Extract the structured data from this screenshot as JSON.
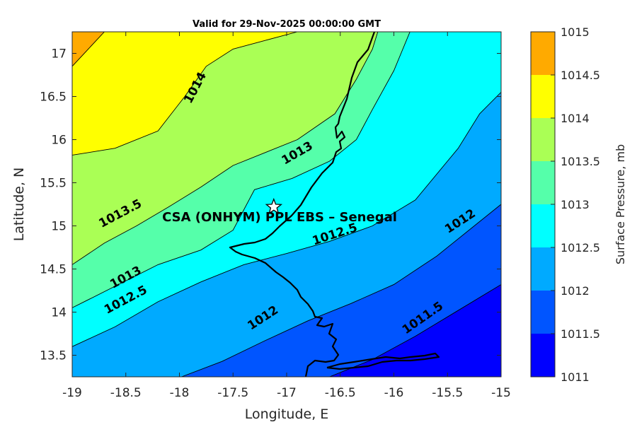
{
  "title": "Valid for 29-Nov-2025 00:00:00 GMT",
  "xlabel": "Longitude, E",
  "ylabel": "Latitude, N",
  "colorbar_label": "Surface Pressure, mb",
  "site_label": "CSA (ONHYM) PPL EBS  – Senegal",
  "site": {
    "lon": -17.12,
    "lat": 15.22,
    "marker": "star-icon"
  },
  "chart_data": {
    "type": "heatmap",
    "xlim": [
      -19,
      -15
    ],
    "ylim": [
      13.25,
      17.25
    ],
    "xticks": [
      -19,
      -18.5,
      -18,
      -17.5,
      -17,
      -16.5,
      -16,
      -15.5,
      -15
    ],
    "xtick_labels": [
      "-19",
      "-18.5",
      "-18",
      "-17.5",
      "-17",
      "-16.5",
      "-16",
      "-15.5",
      "-15"
    ],
    "yticks": [
      13.5,
      14,
      14.5,
      15,
      15.5,
      16,
      16.5,
      17
    ],
    "ytick_labels": [
      "13.5",
      "14",
      "14.5",
      "15",
      "15.5",
      "16",
      "16.5",
      "17"
    ],
    "levels": [
      1011,
      1011.5,
      1012,
      1012.5,
      1013,
      1013.5,
      1014,
      1014.5,
      1015
    ],
    "level_labels": [
      "1011",
      "1011.5",
      "1012",
      "1012.5",
      "1013",
      "1013.5",
      "1014",
      "1014.5",
      "1015"
    ],
    "level_colors": [
      "#0000ff",
      "#0055ff",
      "#00aaff",
      "#00ffff",
      "#55ffaa",
      "#aaff55",
      "#ffff00",
      "#ffaa00",
      "#ff5500"
    ],
    "contours": [
      {
        "level": 1011.5,
        "label": "1011.5",
        "points": [
          [
            -16.6,
            13.25
          ],
          [
            -16.2,
            13.45
          ],
          [
            -15.8,
            13.72
          ],
          [
            -15.4,
            14.02
          ],
          [
            -15.0,
            14.32
          ]
        ],
        "label_at": [
          -15.73,
          13.93
        ],
        "label_angle": -35
      },
      {
        "level": 1012,
        "label": "1012",
        "points": [
          [
            -17.98,
            13.25
          ],
          [
            -17.6,
            13.43
          ],
          [
            -17.2,
            13.67
          ],
          [
            -16.8,
            13.9
          ],
          [
            -16.4,
            14.1
          ],
          [
            -16.0,
            14.32
          ],
          [
            -15.6,
            14.65
          ],
          [
            -15.25,
            15.0
          ],
          [
            -15.0,
            15.25
          ]
        ],
        "label_at": [
          -17.22,
          13.93
        ],
        "label_angle": -33,
        "label2": "1012",
        "label2_at": [
          -15.38,
          15.05
        ],
        "label2_angle": -33
      },
      {
        "level": 1012.5,
        "label": "1012.5",
        "points": [
          [
            -19.0,
            13.6
          ],
          [
            -18.6,
            13.83
          ],
          [
            -18.2,
            14.12
          ],
          [
            -17.8,
            14.35
          ],
          [
            -17.4,
            14.55
          ],
          [
            -17.0,
            14.68
          ],
          [
            -16.6,
            14.82
          ],
          [
            -16.2,
            15.0
          ],
          [
            -15.8,
            15.3
          ],
          [
            -15.4,
            15.9
          ],
          [
            -15.2,
            16.3
          ],
          [
            -15.0,
            16.55
          ]
        ],
        "label_at": [
          -18.5,
          14.14
        ],
        "label_angle": -28,
        "label2": "1012.5",
        "label2_at": [
          -16.55,
          14.9
        ],
        "label2_angle": -18
      },
      {
        "level": 1013,
        "label": "1013",
        "points": [
          [
            -19.0,
            14.05
          ],
          [
            -18.6,
            14.3
          ],
          [
            -18.2,
            14.55
          ],
          [
            -17.8,
            14.72
          ],
          [
            -17.5,
            14.95
          ],
          [
            -17.3,
            15.42
          ],
          [
            -16.95,
            15.55
          ],
          [
            -16.6,
            15.75
          ],
          [
            -16.35,
            16.0
          ],
          [
            -16.2,
            16.35
          ],
          [
            -16.0,
            16.8
          ],
          [
            -15.85,
            17.25
          ]
        ],
        "label_at": [
          -18.5,
          14.4
        ],
        "label_angle": -28,
        "label2": "1013",
        "label2_at": [
          -16.9,
          15.84
        ],
        "label2_angle": -30
      },
      {
        "level": 1013.5,
        "label": "1013.5",
        "points": [
          [
            -19.0,
            14.55
          ],
          [
            -18.7,
            14.8
          ],
          [
            -18.4,
            15.0
          ],
          [
            -18.1,
            15.22
          ],
          [
            -17.8,
            15.45
          ],
          [
            -17.5,
            15.7
          ],
          [
            -17.2,
            15.85
          ],
          [
            -16.9,
            16.0
          ],
          [
            -16.55,
            16.3
          ],
          [
            -16.35,
            16.7
          ],
          [
            -16.2,
            17.05
          ],
          [
            -16.15,
            17.25
          ]
        ],
        "label_at": [
          -18.55,
          15.14
        ],
        "label_angle": -28
      },
      {
        "level": 1014,
        "label": "1014",
        "points": [
          [
            -19.0,
            15.82
          ],
          [
            -18.6,
            15.9
          ],
          [
            -18.2,
            16.1
          ],
          [
            -17.95,
            16.5
          ],
          [
            -17.75,
            16.85
          ],
          [
            -17.5,
            17.05
          ],
          [
            -17.2,
            17.15
          ],
          [
            -16.9,
            17.25
          ]
        ],
        "label_at": [
          -17.85,
          16.6
        ],
        "label_angle": -62
      },
      {
        "level": 1014.5,
        "label": "1014.5",
        "points": [
          [
            -19.0,
            16.85
          ],
          [
            -18.85,
            17.05
          ],
          [
            -18.7,
            17.25
          ]
        ]
      }
    ]
  },
  "colorbar": {
    "position": "right",
    "ticks": [
      "1011",
      "1011.5",
      "1012",
      "1012.5",
      "1013",
      "1013.5",
      "1014",
      "1014.5",
      "1015"
    ]
  }
}
